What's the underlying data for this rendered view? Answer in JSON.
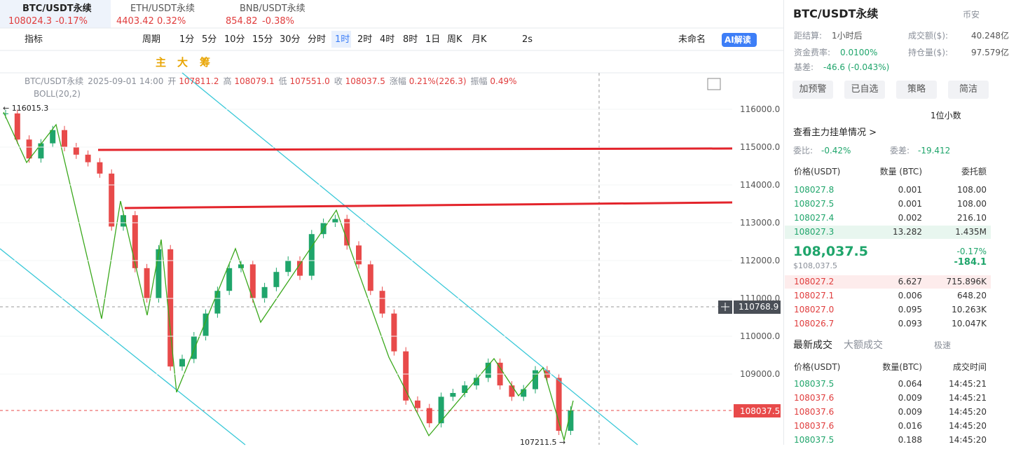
{
  "tabs": [
    {
      "pair": "BTC/USDT永续",
      "price": "108024.3",
      "change": "-0.17%"
    },
    {
      "pair": "ETH/USDT永续",
      "price": "4403.42",
      "change": "0.32%"
    },
    {
      "pair": "BNB/USDT永续",
      "price": "854.82",
      "change": "-0.38%"
    }
  ],
  "toolbar": [
    "指标",
    "周期",
    "1分",
    "5分",
    "10分",
    "15分",
    "30分",
    "分时",
    "1时",
    "2时",
    "4时",
    "8时",
    "1日",
    "周K",
    "月K",
    "2s",
    "未命名",
    "AI解读"
  ],
  "draw_tools": [
    "主",
    "大",
    "筹"
  ],
  "chart": {
    "type": "candlestick",
    "symbol": "BTC/USDT永续",
    "time": "2025-09-01 14:00",
    "fields": [
      {
        "label": "开",
        "value": "107811.2"
      },
      {
        "label": "高",
        "value": "108079.1"
      },
      {
        "label": "低",
        "value": "107551.0"
      },
      {
        "label": "收",
        "value": "108037.5"
      },
      {
        "label": "涨幅",
        "value": "0.21%(226.3)"
      },
      {
        "label": "振幅",
        "value": "0.49%"
      }
    ],
    "indicator": "BOLL(20,2)",
    "high_label": "← 116015.3",
    "low_label": "107211.5 →",
    "crosshair_label": "110768.9",
    "last_price_label": "108037.5",
    "ylim": [
      107130,
      116963
    ],
    "yticks": [
      {
        "value": 116000,
        "label": "116000.0"
      },
      {
        "value": 115000,
        "label": "115000.0"
      },
      {
        "value": 114000,
        "label": "114000.0"
      },
      {
        "value": 113000,
        "label": "113000.0"
      },
      {
        "value": 112000,
        "label": "112000.0"
      },
      {
        "value": 111000,
        "label": "111000.0"
      },
      {
        "value": 110000,
        "label": "110000.0"
      },
      {
        "value": 109000,
        "label": "109000.0"
      }
    ],
    "up_color": "#1fa56b",
    "down_color": "#e84a4a",
    "closes": [
      115890,
      115200,
      114700,
      115100,
      115450,
      115000,
      114800,
      114600,
      114300,
      112900,
      113200,
      111800,
      111000,
      112300,
      109200,
      109400,
      110000,
      110600,
      111200,
      111800,
      111900,
      111000,
      111300,
      111700,
      112000,
      111600,
      112700,
      113000,
      113100,
      112400,
      111900,
      111200,
      110600,
      109600,
      108300,
      108100,
      107700,
      108400,
      108500,
      108700,
      108900,
      109300,
      108700,
      108400,
      108600,
      109100,
      108900,
      107500,
      108037.5
    ]
  },
  "panel": {
    "title": "BTC/USDT永续",
    "exchange": "币安",
    "stats": [
      {
        "label": "距结算:",
        "value": "1小时后"
      },
      {
        "label": "成交额($):",
        "value": "40.248亿"
      },
      {
        "label": "资金费率:",
        "value": "0.0100%"
      },
      {
        "label": "持仓量($):",
        "value": "97.579亿"
      },
      {
        "label": "基差:",
        "value": "-46.6 (-0.043%)"
      }
    ],
    "buttons": [
      "加预警",
      "已自选",
      "策略",
      "简洁"
    ],
    "decimals": "1位小数",
    "main_orders": "查看主力挂单情况 >",
    "ratio": {
      "label": "委比:",
      "value": "-0.42%"
    },
    "diff": {
      "label": "委差:",
      "value": "-19.412"
    },
    "book_headers": [
      "价格(USDT)",
      "数量 (BTC)",
      "委托额"
    ],
    "asks": [
      [
        "108027.8",
        "0.001",
        "108.00"
      ],
      [
        "108027.5",
        "0.001",
        "108.00"
      ],
      [
        "108027.4",
        "0.002",
        "216.10"
      ],
      [
        "108027.3",
        "13.282",
        "1.435M"
      ]
    ],
    "last": {
      "price": "108,037.5",
      "usd": "$108,037.5",
      "change_pct": "-0.17%",
      "change": "-184.1"
    },
    "bids": [
      [
        "108027.2",
        "6.627",
        "715.896K"
      ],
      [
        "108027.1",
        "0.006",
        "648.20"
      ],
      [
        "108027.0",
        "0.095",
        "10.263K"
      ],
      [
        "108026.7",
        "0.093",
        "10.047K"
      ]
    ],
    "trade_tabs": [
      "最新成交",
      "大额成交"
    ],
    "fast": "极速",
    "trade_headers": [
      "价格(USDT)",
      "数量(BTC)",
      "成交时间"
    ],
    "trades": [
      {
        "cells": [
          "108037.5",
          "0.064",
          "14:45:21"
        ],
        "color": "#1fa56b"
      },
      {
        "cells": [
          "108037.6",
          "0.009",
          "14:45:21"
        ],
        "color": "#e03c3c"
      },
      {
        "cells": [
          "108037.6",
          "0.009",
          "14:45:20"
        ],
        "color": "#e03c3c"
      },
      {
        "cells": [
          "108037.6",
          "0.016",
          "14:45:20"
        ],
        "color": "#e03c3c"
      },
      {
        "cells": [
          "108037.5",
          "0.188",
          "14:45:20"
        ],
        "color": "#1fa56b"
      }
    ]
  }
}
